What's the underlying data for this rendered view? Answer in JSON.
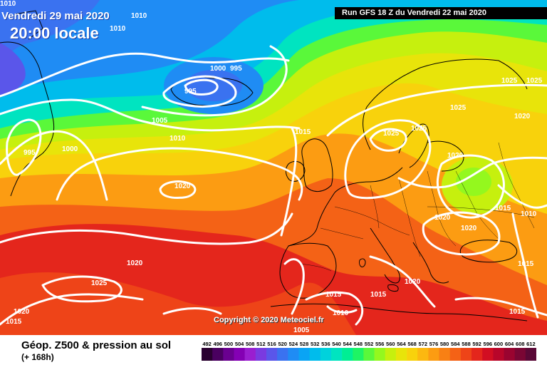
{
  "header": {
    "date": "Vendredi 29 mai 2020",
    "time": "20:00 locale",
    "run": "Run GFS 18 Z du Vendredi 22 mai 2020"
  },
  "copyright": "Copyright © 2020 Meteociel.fr",
  "legend": {
    "title": "Géop. Z500 & pression au sol",
    "subtitle": "(+ 168h)",
    "ticks": [
      "492",
      "496",
      "500",
      "504",
      "508",
      "512",
      "516",
      "520",
      "524",
      "528",
      "532",
      "536",
      "540",
      "544",
      "548",
      "552",
      "556",
      "560",
      "564",
      "568",
      "572",
      "576",
      "580",
      "584",
      "588",
      "592",
      "596",
      "600",
      "604",
      "608",
      "612"
    ],
    "colors": [
      "#2a0030",
      "#4a0060",
      "#6a0090",
      "#8400b4",
      "#9a1ed0",
      "#7a3ae0",
      "#5a56ea",
      "#3a72f0",
      "#1f8cf4",
      "#0aa4f4",
      "#00bcec",
      "#00d2dc",
      "#00e4c0",
      "#00ee94",
      "#1ef464",
      "#5af83a",
      "#94f81e",
      "#c6f00e",
      "#e8e40a",
      "#f8d20c",
      "#fcb810",
      "#fc9c12",
      "#f88014",
      "#f46216",
      "#ee4418",
      "#e4261c",
      "#d20e22",
      "#b8062a",
      "#9a0430",
      "#7a0634",
      "#5a0836"
    ]
  },
  "isobar_labels": [
    {
      "text": "1010"
    },
    {
      "text": "1010"
    },
    {
      "text": "1010"
    },
    {
      "text": "1000"
    },
    {
      "text": "995"
    },
    {
      "text": "995"
    },
    {
      "text": "1005"
    },
    {
      "text": "1010"
    },
    {
      "text": "995"
    },
    {
      "text": "1000"
    },
    {
      "text": "1015"
    },
    {
      "text": "1020"
    },
    {
      "text": "1020"
    },
    {
      "text": "1025"
    },
    {
      "text": "1020"
    },
    {
      "text": "1015"
    },
    {
      "text": "1015"
    },
    {
      "text": "1010"
    },
    {
      "text": "1005"
    },
    {
      "text": "1025"
    },
    {
      "text": "1025"
    },
    {
      "text": "1025"
    },
    {
      "text": "1025"
    },
    {
      "text": "1025"
    },
    {
      "text": "1020"
    },
    {
      "text": "1020"
    },
    {
      "text": "1015"
    },
    {
      "text": "1010"
    },
    {
      "text": "1020"
    },
    {
      "text": "1020"
    },
    {
      "text": "1020"
    },
    {
      "text": "1015"
    },
    {
      "text": "1015"
    },
    {
      "text": "1015"
    }
  ]
}
